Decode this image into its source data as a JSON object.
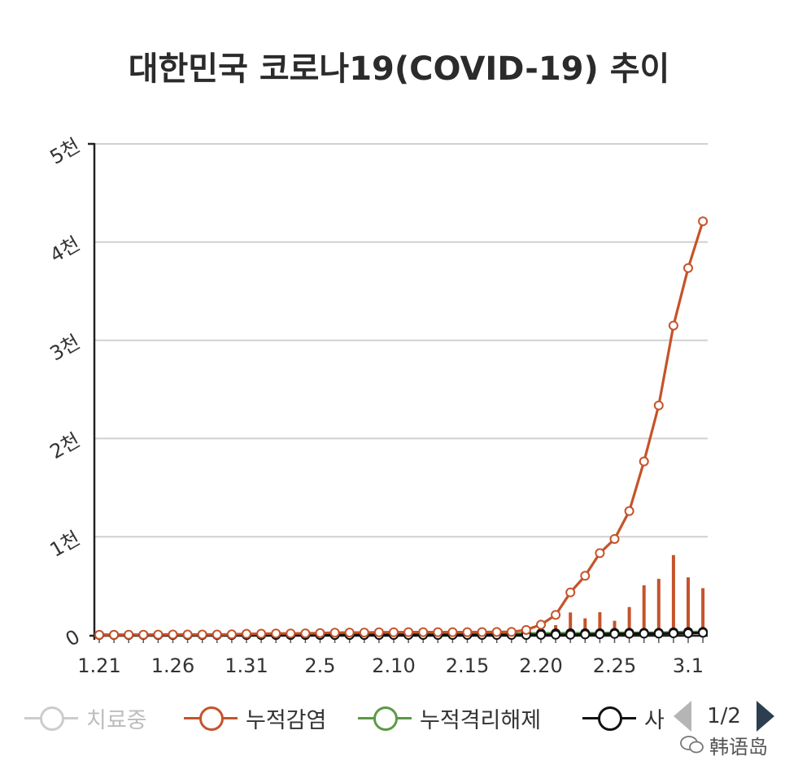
{
  "chart_data": {
    "type": "line",
    "title": "대한민국 코로나19(COVID-19) 추이",
    "x": [
      "1.21",
      "1.22",
      "1.23",
      "1.24",
      "1.25",
      "1.26",
      "1.27",
      "1.28",
      "1.29",
      "1.30",
      "1.31",
      "2.1",
      "2.2",
      "2.3",
      "2.4",
      "2.5",
      "2.6",
      "2.7",
      "2.8",
      "2.9",
      "2.10",
      "2.11",
      "2.12",
      "2.13",
      "2.14",
      "2.15",
      "2.16",
      "2.17",
      "2.18",
      "2.19",
      "2.20",
      "2.21",
      "2.22",
      "2.23",
      "2.24",
      "2.25",
      "2.26",
      "2.27",
      "2.28",
      "2.29",
      "3.1",
      "3.2"
    ],
    "x_tick_labels": [
      "1.21",
      "1.26",
      "1.31",
      "2.5",
      "2.10",
      "2.15",
      "2.20",
      "2.25",
      "3.1"
    ],
    "y_tick_labels": [
      "0",
      "1천",
      "2천",
      "3천",
      "4천",
      "5천"
    ],
    "ylim": [
      0,
      5000
    ],
    "grid": true,
    "legend_position": "bottom",
    "series": [
      {
        "name": "치료중",
        "color": "#cccccc",
        "values": [
          1,
          1,
          2,
          2,
          2,
          3,
          4,
          4,
          4,
          4,
          11,
          12,
          15,
          15,
          16,
          18,
          23,
          24,
          24,
          24,
          24,
          25,
          21,
          21,
          20,
          20,
          20,
          20,
          21,
          31,
          92,
          182,
          411,
          585,
          811,
          955,
          1227,
          1736,
          2269,
          3069,
          3678,
          4145
        ]
      },
      {
        "name": "누적감염",
        "color": "#c5532a",
        "values": [
          1,
          1,
          2,
          2,
          3,
          4,
          4,
          4,
          4,
          6,
          11,
          12,
          15,
          15,
          16,
          19,
          23,
          24,
          24,
          27,
          27,
          28,
          28,
          28,
          28,
          28,
          29,
          30,
          31,
          51,
          104,
          204,
          433,
          602,
          833,
          977,
          1261,
          1766,
          2337,
          3150,
          3736,
          4212
        ],
        "daily_bars": [
          0,
          0,
          1,
          0,
          1,
          1,
          0,
          0,
          0,
          2,
          5,
          1,
          3,
          0,
          1,
          3,
          4,
          1,
          0,
          3,
          0,
          1,
          0,
          0,
          0,
          0,
          1,
          1,
          1,
          20,
          53,
          100,
          229,
          169,
          231,
          144,
          284,
          505,
          571,
          813,
          586,
          476
        ]
      },
      {
        "name": "누적격리해제",
        "color": "#5a9a45",
        "values": [
          0,
          0,
          0,
          0,
          0,
          0,
          0,
          0,
          0,
          0,
          0,
          0,
          0,
          0,
          0,
          0,
          0,
          0,
          0,
          1,
          3,
          3,
          7,
          7,
          8,
          9,
          9,
          10,
          10,
          16,
          16,
          17,
          18,
          18,
          18,
          22,
          22,
          22,
          22,
          27,
          30,
          31
        ]
      },
      {
        "name": "사망",
        "color": "#111111",
        "values": [
          0,
          0,
          0,
          0,
          0,
          0,
          0,
          0,
          0,
          0,
          0,
          0,
          0,
          0,
          0,
          0,
          0,
          0,
          0,
          0,
          0,
          0,
          0,
          0,
          0,
          0,
          0,
          0,
          0,
          0,
          1,
          2,
          2,
          5,
          7,
          10,
          12,
          13,
          13,
          16,
          17,
          22
        ]
      }
    ]
  },
  "legend": {
    "items": [
      {
        "label": "치료중",
        "color": "#cccccc",
        "label_color": "#bdbdbd"
      },
      {
        "label": "누적감염",
        "color": "#c5532a",
        "label_color": "#333333"
      },
      {
        "label": "누적격리해제",
        "color": "#5a9a45",
        "label_color": "#333333"
      },
      {
        "label": "사",
        "color": "#111111",
        "label_color": "#333333"
      }
    ]
  },
  "pager": {
    "text": "1/2"
  },
  "watermark": {
    "text": "韩语岛"
  }
}
